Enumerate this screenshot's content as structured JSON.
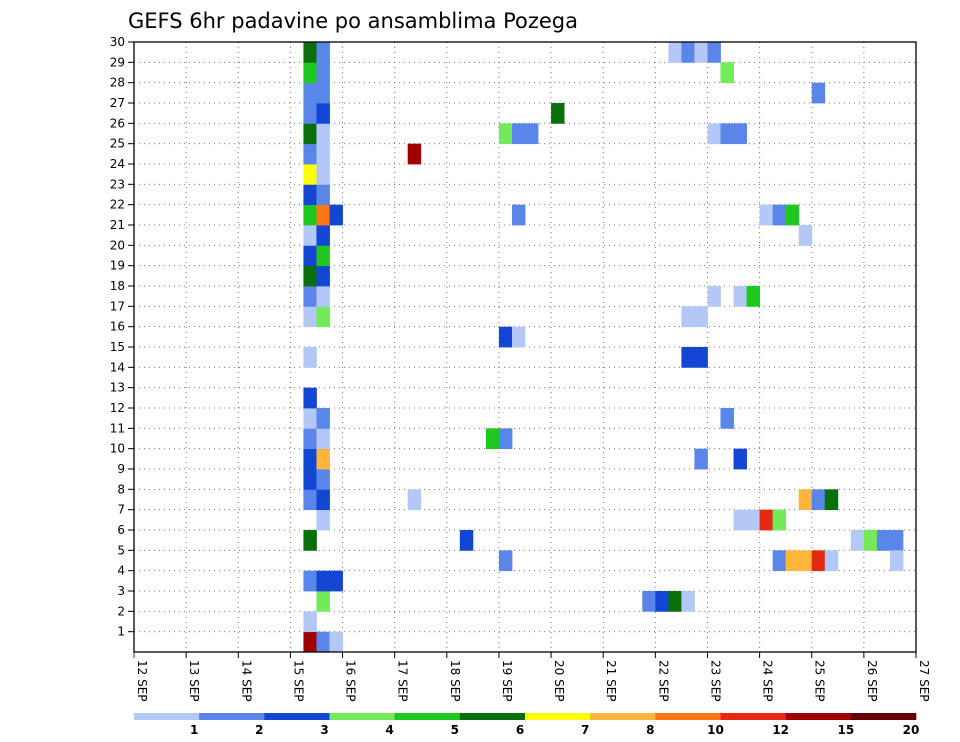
{
  "chart_data": {
    "type": "heatmap",
    "title": "GEFS 6hr padavine po ansamblima Pozega",
    "x_labels": [
      "12 SEP",
      "13 SEP",
      "14 SEP",
      "15 SEP",
      "16 SEP",
      "17 SEP",
      "18 SEP",
      "19 SEP",
      "20 SEP",
      "21 SEP",
      "22 SEP",
      "23 SEP",
      "24 SEP",
      "25 SEP",
      "26 SEP",
      "27 SEP"
    ],
    "x_range": [
      "12 SEP 00z",
      "27 SEP 00z"
    ],
    "y_labels": [
      "1",
      "2",
      "3",
      "4",
      "5",
      "6",
      "7",
      "8",
      "9",
      "10",
      "11",
      "12",
      "13",
      "14",
      "15",
      "16",
      "17",
      "18",
      "19",
      "20",
      "21",
      "22",
      "23",
      "24",
      "25",
      "26",
      "27",
      "28",
      "29",
      "30"
    ],
    "y_range": [
      0,
      30
    ],
    "grid": "dotted",
    "colorbar": {
      "labels": [
        "1",
        "2",
        "3",
        "4",
        "5",
        "6",
        "7",
        "8",
        "10",
        "12",
        "15",
        "20"
      ],
      "colors": [
        "#b4c8f8",
        "#5a86ea",
        "#1446d4",
        "#72ea5a",
        "#1ec81e",
        "#0a6e0a",
        "#ffff00",
        "#ffb43c",
        "#ff7814",
        "#e62814",
        "#a00000",
        "#640000"
      ]
    },
    "cells": [
      {
        "x": 3.25,
        "y": 0,
        "v": "#a00000"
      },
      {
        "x": 3.5,
        "y": 0,
        "v": "#5a86ea"
      },
      {
        "x": 3.75,
        "y": 0,
        "v": "#b4c8f8"
      },
      {
        "x": 3.25,
        "y": 1,
        "v": "#b4c8f8"
      },
      {
        "x": 3.5,
        "y": 2,
        "v": "#72ea5a"
      },
      {
        "x": 3.25,
        "y": 3,
        "v": "#5a86ea"
      },
      {
        "x": 3.5,
        "y": 3,
        "v": "#1446d4"
      },
      {
        "x": 3.75,
        "y": 3,
        "v": "#1446d4"
      },
      {
        "x": 3.25,
        "y": 5,
        "v": "#0a6e0a"
      },
      {
        "x": 3.5,
        "y": 6,
        "v": "#b4c8f8"
      },
      {
        "x": 3.25,
        "y": 7,
        "v": "#5a86ea"
      },
      {
        "x": 3.5,
        "y": 7,
        "v": "#1446d4"
      },
      {
        "x": 3.25,
        "y": 8,
        "v": "#1446d4"
      },
      {
        "x": 3.5,
        "y": 8,
        "v": "#5a86ea"
      },
      {
        "x": 3.25,
        "y": 9,
        "v": "#1446d4"
      },
      {
        "x": 3.5,
        "y": 9,
        "v": "#ffb43c"
      },
      {
        "x": 3.25,
        "y": 10,
        "v": "#5a86ea"
      },
      {
        "x": 3.5,
        "y": 10,
        "v": "#b4c8f8"
      },
      {
        "x": 3.25,
        "y": 11,
        "v": "#b4c8f8"
      },
      {
        "x": 3.5,
        "y": 11,
        "v": "#5a86ea"
      },
      {
        "x": 3.25,
        "y": 12,
        "v": "#1446d4"
      },
      {
        "x": 3.25,
        "y": 14,
        "v": "#b4c8f8"
      },
      {
        "x": 3.25,
        "y": 16,
        "v": "#b4c8f8"
      },
      {
        "x": 3.5,
        "y": 16,
        "v": "#72ea5a"
      },
      {
        "x": 3.25,
        "y": 17,
        "v": "#5a86ea"
      },
      {
        "x": 3.5,
        "y": 17,
        "v": "#b4c8f8"
      },
      {
        "x": 3.25,
        "y": 18,
        "v": "#0a6e0a"
      },
      {
        "x": 3.5,
        "y": 18,
        "v": "#1446d4"
      },
      {
        "x": 3.25,
        "y": 19,
        "v": "#1446d4"
      },
      {
        "x": 3.5,
        "y": 19,
        "v": "#1ec81e"
      },
      {
        "x": 3.25,
        "y": 20,
        "v": "#b4c8f8"
      },
      {
        "x": 3.5,
        "y": 20,
        "v": "#1446d4"
      },
      {
        "x": 3.25,
        "y": 21,
        "v": "#1ec81e"
      },
      {
        "x": 3.5,
        "y": 21,
        "v": "#ff7814"
      },
      {
        "x": 3.75,
        "y": 21,
        "v": "#1446d4"
      },
      {
        "x": 3.25,
        "y": 22,
        "v": "#1446d4"
      },
      {
        "x": 3.5,
        "y": 22,
        "v": "#5a86ea"
      },
      {
        "x": 3.25,
        "y": 23,
        "v": "#ffff00"
      },
      {
        "x": 3.5,
        "y": 23,
        "v": "#b4c8f8"
      },
      {
        "x": 3.25,
        "y": 24,
        "v": "#5a86ea"
      },
      {
        "x": 3.5,
        "y": 24,
        "v": "#b4c8f8"
      },
      {
        "x": 3.25,
        "y": 25,
        "v": "#0a6e0a"
      },
      {
        "x": 3.5,
        "y": 25,
        "v": "#b4c8f8"
      },
      {
        "x": 3.25,
        "y": 26,
        "v": "#5a86ea"
      },
      {
        "x": 3.5,
        "y": 26,
        "v": "#1446d4"
      },
      {
        "x": 3.25,
        "y": 27,
        "v": "#5a86ea"
      },
      {
        "x": 3.5,
        "y": 27,
        "v": "#5a86ea"
      },
      {
        "x": 3.25,
        "y": 28,
        "v": "#1ec81e"
      },
      {
        "x": 3.5,
        "y": 28,
        "v": "#5a86ea"
      },
      {
        "x": 3.25,
        "y": 29,
        "v": "#0a6e0a"
      },
      {
        "x": 3.5,
        "y": 29,
        "v": "#5a86ea"
      },
      {
        "x": 5.25,
        "y": 7,
        "v": "#b4c8f8"
      },
      {
        "x": 5.25,
        "y": 24,
        "v": "#a00000"
      },
      {
        "x": 6.25,
        "y": 5,
        "v": "#1446d4"
      },
      {
        "x": 6.75,
        "y": 10,
        "v": "#1ec81e"
      },
      {
        "x": 7.0,
        "y": 10,
        "v": "#5a86ea"
      },
      {
        "x": 7.0,
        "y": 4,
        "v": "#5a86ea"
      },
      {
        "x": 7.0,
        "y": 15,
        "v": "#1446d4"
      },
      {
        "x": 7.25,
        "y": 15,
        "v": "#b4c8f8"
      },
      {
        "x": 7.25,
        "y": 21,
        "v": "#5a86ea"
      },
      {
        "x": 7.0,
        "y": 25,
        "v": "#72ea5a"
      },
      {
        "x": 7.25,
        "y": 25,
        "v": "#5a86ea"
      },
      {
        "x": 7.5,
        "y": 25,
        "v": "#5a86ea"
      },
      {
        "x": 8.0,
        "y": 26,
        "v": "#0a6e0a"
      },
      {
        "x": 9.75,
        "y": 2,
        "v": "#5a86ea"
      },
      {
        "x": 10.0,
        "y": 2,
        "v": "#1446d4"
      },
      {
        "x": 10.25,
        "y": 2,
        "v": "#0a6e0a"
      },
      {
        "x": 10.5,
        "y": 2,
        "v": "#b4c8f8"
      },
      {
        "x": 10.5,
        "y": 14,
        "v": "#1446d4"
      },
      {
        "x": 10.75,
        "y": 14,
        "v": "#1446d4"
      },
      {
        "x": 10.5,
        "y": 16,
        "v": "#b4c8f8"
      },
      {
        "x": 10.75,
        "y": 16,
        "v": "#b4c8f8"
      },
      {
        "x": 10.75,
        "y": 9,
        "v": "#5a86ea"
      },
      {
        "x": 11.0,
        "y": 17,
        "v": "#b4c8f8"
      },
      {
        "x": 11.0,
        "y": 25,
        "v": "#b4c8f8"
      },
      {
        "x": 11.25,
        "y": 25,
        "v": "#5a86ea"
      },
      {
        "x": 11.5,
        "y": 25,
        "v": "#5a86ea"
      },
      {
        "x": 10.25,
        "y": 29,
        "v": "#b4c8f8"
      },
      {
        "x": 10.5,
        "y": 29,
        "v": "#5a86ea"
      },
      {
        "x": 10.75,
        "y": 29,
        "v": "#b4c8f8"
      },
      {
        "x": 11.0,
        "y": 29,
        "v": "#5a86ea"
      },
      {
        "x": 11.25,
        "y": 28,
        "v": "#72ea5a"
      },
      {
        "x": 11.25,
        "y": 11,
        "v": "#5a86ea"
      },
      {
        "x": 11.5,
        "y": 9,
        "v": "#1446d4"
      },
      {
        "x": 11.5,
        "y": 17,
        "v": "#b4c8f8"
      },
      {
        "x": 11.75,
        "y": 17,
        "v": "#1ec81e"
      },
      {
        "x": 11.5,
        "y": 6,
        "v": "#b4c8f8"
      },
      {
        "x": 11.75,
        "y": 6,
        "v": "#b4c8f8"
      },
      {
        "x": 12.0,
        "y": 6,
        "v": "#e62814"
      },
      {
        "x": 12.25,
        "y": 6,
        "v": "#72ea5a"
      },
      {
        "x": 12.0,
        "y": 21,
        "v": "#b4c8f8"
      },
      {
        "x": 12.25,
        "y": 21,
        "v": "#5a86ea"
      },
      {
        "x": 12.5,
        "y": 21,
        "v": "#1ec81e"
      },
      {
        "x": 12.25,
        "y": 4,
        "v": "#5a86ea"
      },
      {
        "x": 12.5,
        "y": 4,
        "v": "#ffb43c"
      },
      {
        "x": 12.75,
        "y": 4,
        "v": "#ffb43c"
      },
      {
        "x": 13.0,
        "y": 4,
        "v": "#e62814"
      },
      {
        "x": 13.25,
        "y": 4,
        "v": "#b4c8f8"
      },
      {
        "x": 12.75,
        "y": 20,
        "v": "#b4c8f8"
      },
      {
        "x": 12.75,
        "y": 7,
        "v": "#ffb43c"
      },
      {
        "x": 13.0,
        "y": 7,
        "v": "#5a86ea"
      },
      {
        "x": 13.25,
        "y": 7,
        "v": "#0a6e0a"
      },
      {
        "x": 13.0,
        "y": 27,
        "v": "#5a86ea"
      },
      {
        "x": 13.75,
        "y": 5,
        "v": "#b4c8f8"
      },
      {
        "x": 14.0,
        "y": 5,
        "v": "#72ea5a"
      },
      {
        "x": 14.25,
        "y": 5,
        "v": "#5a86ea"
      },
      {
        "x": 14.5,
        "y": 5,
        "v": "#5a86ea"
      },
      {
        "x": 14.5,
        "y": 4,
        "v": "#b4c8f8"
      }
    ]
  }
}
